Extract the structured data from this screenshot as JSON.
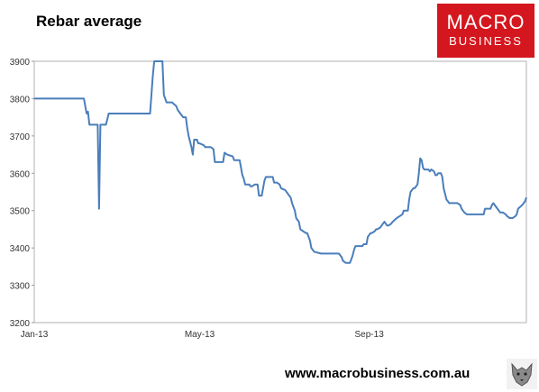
{
  "chart_data": {
    "type": "line",
    "title": "Rebar average",
    "xlabel": "",
    "ylabel": "",
    "x_tick_labels": [
      "Jan-13",
      "May-13",
      "Sep-13"
    ],
    "y_ticks": [
      3200,
      3300,
      3400,
      3500,
      3600,
      3700,
      3800,
      3900
    ],
    "ylim": [
      3200,
      3900
    ],
    "grid": false,
    "legend": "none",
    "line_color": "#4a7ebb",
    "series": [
      {
        "values": [
          [
            0,
            3800
          ],
          [
            5,
            3800
          ],
          [
            15,
            3800
          ],
          [
            25,
            3800
          ],
          [
            32,
            3800
          ],
          [
            36,
            3800
          ],
          [
            38,
            3760
          ],
          [
            39,
            3765
          ],
          [
            40,
            3730
          ],
          [
            44,
            3730
          ],
          [
            46,
            3730
          ],
          [
            47,
            3505
          ],
          [
            48,
            3730
          ],
          [
            49,
            3730
          ],
          [
            52,
            3730
          ],
          [
            53,
            3745
          ],
          [
            54,
            3760
          ],
          [
            70,
            3760
          ],
          [
            75,
            3760
          ],
          [
            84,
            3760
          ],
          [
            86,
            3860
          ],
          [
            87,
            3910
          ],
          [
            93,
            3910
          ],
          [
            94,
            3810
          ],
          [
            96,
            3790
          ],
          [
            100,
            3790
          ],
          [
            103,
            3780
          ],
          [
            104,
            3770
          ],
          [
            106,
            3760
          ],
          [
            108,
            3750
          ],
          [
            110,
            3750
          ],
          [
            111,
            3720
          ],
          [
            112,
            3700
          ],
          [
            114,
            3670
          ],
          [
            115,
            3650
          ],
          [
            116,
            3690
          ],
          [
            118,
            3690
          ],
          [
            119,
            3680
          ],
          [
            120,
            3680
          ],
          [
            123,
            3675
          ],
          [
            124,
            3670
          ],
          [
            126,
            3670
          ],
          [
            128,
            3670
          ],
          [
            130,
            3665
          ],
          [
            131,
            3630
          ],
          [
            136,
            3630
          ],
          [
            137,
            3630
          ],
          [
            138,
            3655
          ],
          [
            140,
            3650
          ],
          [
            144,
            3645
          ],
          [
            145,
            3635
          ],
          [
            149,
            3635
          ],
          [
            151,
            3595
          ],
          [
            152,
            3585
          ],
          [
            153,
            3570
          ],
          [
            156,
            3570
          ],
          [
            157,
            3565
          ],
          [
            158,
            3565
          ],
          [
            160,
            3570
          ],
          [
            162,
            3570
          ],
          [
            163,
            3540
          ],
          [
            165,
            3540
          ],
          [
            167,
            3580
          ],
          [
            168,
            3590
          ],
          [
            173,
            3590
          ],
          [
            174,
            3575
          ],
          [
            176,
            3575
          ],
          [
            178,
            3570
          ],
          [
            179,
            3560
          ],
          [
            182,
            3555
          ],
          [
            184,
            3545
          ],
          [
            186,
            3535
          ],
          [
            187,
            3520
          ],
          [
            189,
            3500
          ],
          [
            190,
            3480
          ],
          [
            192,
            3470
          ],
          [
            193,
            3450
          ],
          [
            195,
            3445
          ],
          [
            197,
            3440
          ],
          [
            198,
            3440
          ],
          [
            200,
            3420
          ],
          [
            201,
            3400
          ],
          [
            203,
            3390
          ],
          [
            208,
            3385
          ],
          [
            210,
            3385
          ],
          [
            212,
            3385
          ],
          [
            215,
            3385
          ],
          [
            216,
            3385
          ],
          [
            218,
            3385
          ],
          [
            221,
            3385
          ],
          [
            222,
            3380
          ],
          [
            223,
            3375
          ],
          [
            224,
            3365
          ],
          [
            226,
            3360
          ],
          [
            229,
            3360
          ],
          [
            230,
            3370
          ],
          [
            231,
            3380
          ],
          [
            232,
            3395
          ],
          [
            233,
            3405
          ],
          [
            238,
            3405
          ],
          [
            239,
            3410
          ],
          [
            241,
            3410
          ],
          [
            242,
            3430
          ],
          [
            244,
            3440
          ],
          [
            245,
            3440
          ],
          [
            247,
            3445
          ],
          [
            248,
            3450
          ],
          [
            249,
            3450
          ],
          [
            251,
            3455
          ],
          [
            252,
            3460
          ],
          [
            253,
            3465
          ],
          [
            254,
            3470
          ],
          [
            255,
            3465
          ],
          [
            256,
            3460
          ],
          [
            257,
            3460
          ],
          [
            259,
            3465
          ],
          [
            260,
            3470
          ],
          [
            263,
            3480
          ],
          [
            267,
            3490
          ],
          [
            268,
            3500
          ],
          [
            271,
            3500
          ],
          [
            272,
            3530
          ],
          [
            273,
            3550
          ],
          [
            274,
            3555
          ],
          [
            275,
            3560
          ],
          [
            276,
            3560
          ],
          [
            278,
            3570
          ],
          [
            279,
            3600
          ],
          [
            280,
            3640
          ],
          [
            281,
            3635
          ],
          [
            282,
            3615
          ],
          [
            283,
            3610
          ],
          [
            284,
            3610
          ],
          [
            286,
            3610
          ],
          [
            287,
            3605
          ],
          [
            288,
            3610
          ],
          [
            290,
            3605
          ],
          [
            291,
            3595
          ],
          [
            292,
            3595
          ],
          [
            293,
            3600
          ],
          [
            295,
            3600
          ],
          [
            296,
            3590
          ],
          [
            297,
            3560
          ],
          [
            298,
            3545
          ],
          [
            299,
            3530
          ],
          [
            301,
            3520
          ],
          [
            305,
            3520
          ],
          [
            307,
            3520
          ],
          [
            309,
            3515
          ],
          [
            310,
            3505
          ],
          [
            312,
            3495
          ],
          [
            314,
            3490
          ],
          [
            320,
            3490
          ],
          [
            323,
            3490
          ],
          [
            326,
            3490
          ],
          [
            327,
            3505
          ],
          [
            330,
            3505
          ],
          [
            331,
            3505
          ],
          [
            332,
            3515
          ],
          [
            333,
            3520
          ],
          [
            336,
            3505
          ],
          [
            338,
            3495
          ],
          [
            340,
            3495
          ],
          [
            342,
            3490
          ],
          [
            343,
            3485
          ],
          [
            345,
            3480
          ],
          [
            347,
            3480
          ],
          [
            349,
            3485
          ],
          [
            350,
            3490
          ],
          [
            351,
            3505
          ],
          [
            354,
            3515
          ],
          [
            356,
            3525
          ],
          [
            357,
            3535
          ]
        ]
      }
    ]
  },
  "logo": {
    "line1": "MACRO",
    "line2": "BUSINESS"
  },
  "footer": {
    "url": "www.macrobusiness.com.au"
  }
}
